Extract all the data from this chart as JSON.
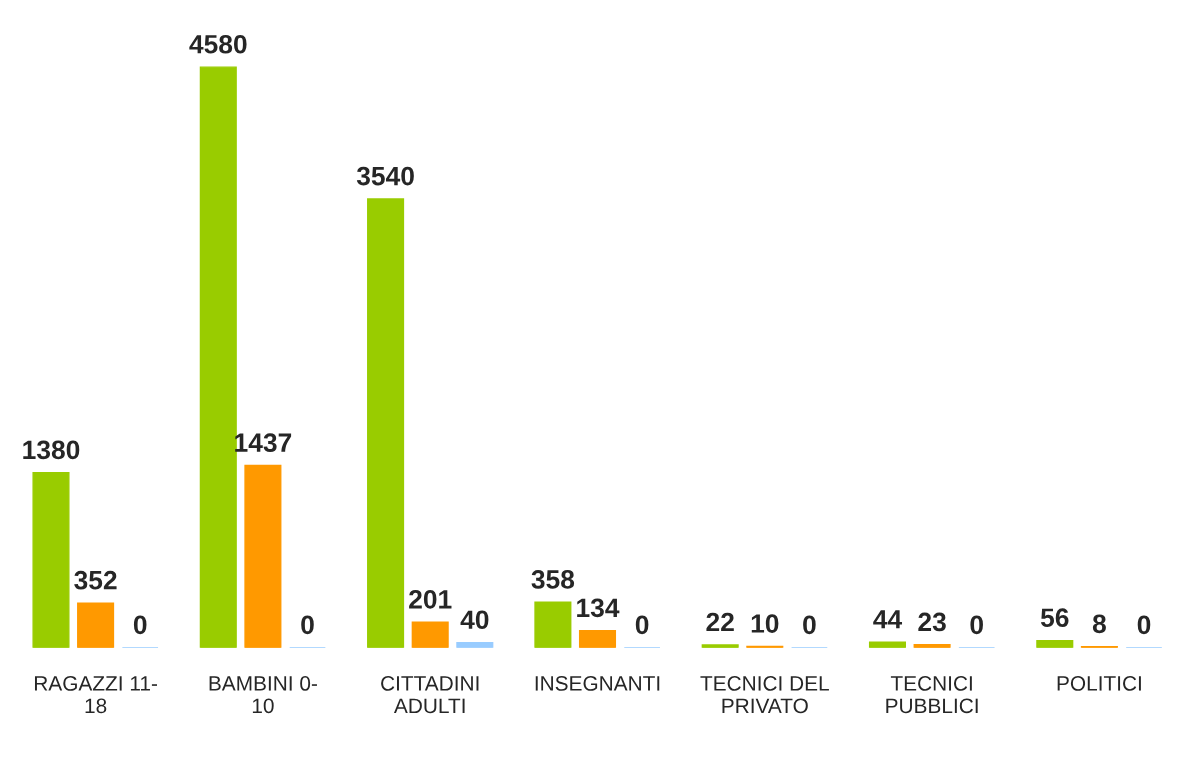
{
  "chart_data": {
    "type": "bar",
    "categories": [
      "RAGAZZI 11-\n18",
      "BAMBINI 0-\n10",
      "CITTADINI\nADULTI",
      "INSEGNANTI",
      "TECNICI DEL\nPRIVATO",
      "TECNICI\nPUBBLICI",
      "POLITICI"
    ],
    "series": [
      {
        "color": "#99cc00",
        "values": [
          1380,
          4580,
          3540,
          358,
          22,
          44,
          56
        ]
      },
      {
        "color": "#ff9900",
        "values": [
          352,
          1437,
          201,
          134,
          10,
          23,
          8
        ]
      },
      {
        "color": "#99ccff",
        "values": [
          0,
          0,
          40,
          0,
          0,
          0,
          0
        ]
      }
    ],
    "data_labels": true,
    "grid": false,
    "legend": false
  }
}
